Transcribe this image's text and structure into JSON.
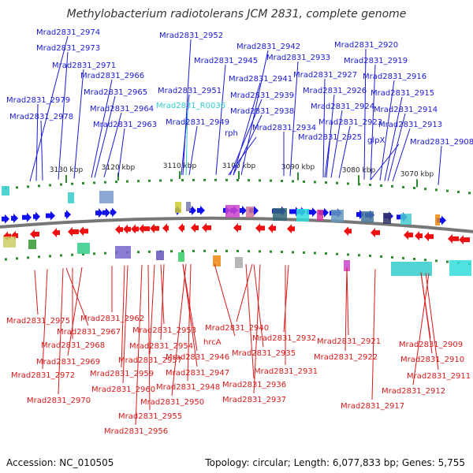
{
  "title": "Methylobacterium radiotolerans JCM 2831, complete genome",
  "footer": {
    "accession": "Accession: NC_010505",
    "topology": "Topology: circular; Length: 6,077,833 bp; Genes: 5,755"
  },
  "colors": {
    "top_label": "#1a1ad6",
    "rna_label": "#33cccc",
    "bottom_label": "#d81a1a",
    "forward_gene": "#1010ee",
    "reverse_gene": "#ee1010",
    "backbone": "#777777",
    "tick_dot": "#2e8b2e"
  },
  "ticks": [
    "3130 kbp",
    "3120 kbp",
    "3110 kbp",
    "3100 kbp",
    "3090 kbp",
    "3080 kbp",
    "3070 kbp"
  ],
  "top_labels": [
    "Mrad2831_2974",
    "Mrad2831_2973",
    "Mrad2831_2971",
    "Mrad2831_2966",
    "Mrad2831_2965",
    "Mrad2831_2979",
    "Mrad2831_2964",
    "Mrad2831_2978",
    "Mrad2831_2963",
    "Mrad2831_2952",
    "Mrad2831_2942",
    "Mrad2831_2945",
    "Mrad2831_2941",
    "Mrad2831_2951",
    "Mrad2831_R0036",
    "Mrad2831_2939",
    "Mrad2831_2938",
    "Mrad2831_2949",
    "rph",
    "Mrad2831_2933",
    "Mrad2831_2927",
    "Mrad2831_2926",
    "Mrad2831_2924",
    "Mrad2831_2934",
    "Mrad2831_2923",
    "Mrad2831_2925",
    "Mrad2831_2920",
    "Mrad2831_2919",
    "Mrad2831_2916",
    "Mrad2831_2915",
    "Mrad2831_2914",
    "Mrad2831_2913",
    "glpX",
    "Mrad2831_2908"
  ],
  "bottom_labels": [
    "Mrad2831_2975",
    "Mrad2831_2967",
    "Mrad2831_2968",
    "Mrad2831_2969",
    "Mrad2831_2972",
    "Mrad2831_2970",
    "Mrad2831_2962",
    "Mrad2831_2953",
    "Mrad2831_2954",
    "Mrad2831_2957",
    "Mrad2831_2959",
    "Mrad2831_2960",
    "Mrad2831_2955",
    "Mrad2831_2956",
    "Mrad2831_2940",
    "hrcA",
    "Mrad2831_2946",
    "Mrad2831_2947",
    "Mrad2831_2948",
    "Mrad2831_2950",
    "Mrad2831_2932",
    "Mrad2831_2935",
    "Mrad2831_2931",
    "Mrad2831_2936",
    "Mrad2831_2937",
    "Mrad2831_2921",
    "Mrad2831_2922",
    "Mrad2831_2917",
    "Mrad2831_2909",
    "Mrad2831_2910",
    "Mrad2831_2911",
    "Mrad2831_2912"
  ]
}
